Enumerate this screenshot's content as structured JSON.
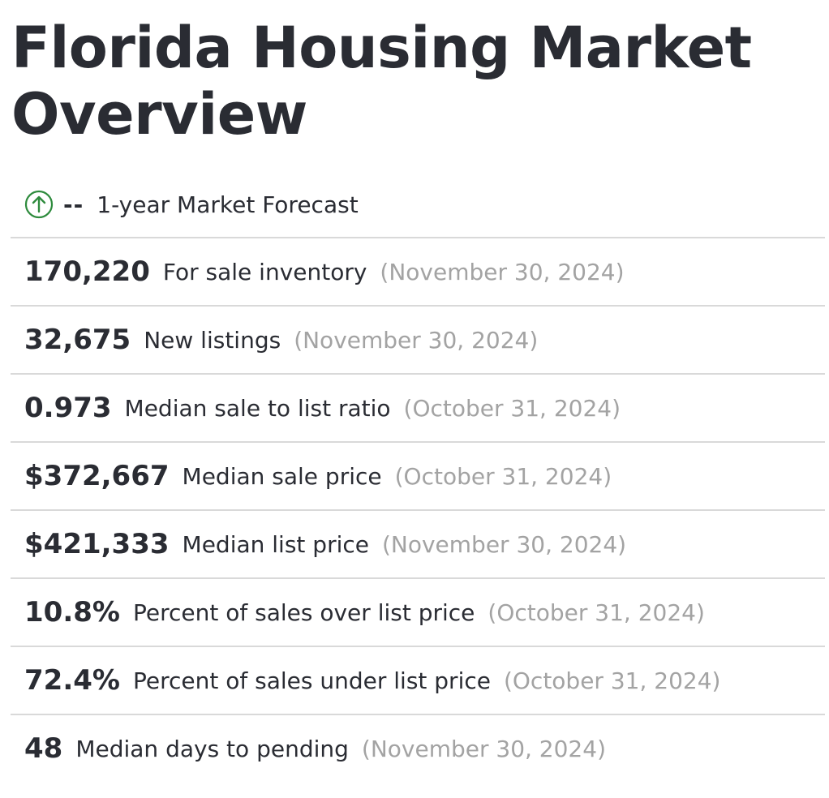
{
  "page": {
    "title": "Florida Housing Market Overview"
  },
  "forecast": {
    "icon": "arrow-up-circle-icon",
    "icon_color": "#2e8b3d",
    "value": "--",
    "label": "1-year Market Forecast"
  },
  "stats": [
    {
      "value": "170,220",
      "label": "For sale inventory",
      "date": "(November 30, 2024)"
    },
    {
      "value": "32,675",
      "label": "New listings",
      "date": "(November 30, 2024)"
    },
    {
      "value": "0.973",
      "label": "Median sale to list ratio",
      "date": "(October 31, 2024)"
    },
    {
      "value": "$372,667",
      "label": "Median sale price",
      "date": "(October 31, 2024)"
    },
    {
      "value": "$421,333",
      "label": "Median list price",
      "date": "(November 30, 2024)"
    },
    {
      "value": "10.8%",
      "label": "Percent of sales over list price",
      "date": "(October 31, 2024)"
    },
    {
      "value": "72.4%",
      "label": "Percent of sales under list price",
      "date": "(October 31, 2024)"
    },
    {
      "value": "48",
      "label": "Median days to pending",
      "date": "(November 30, 2024)"
    }
  ],
  "colors": {
    "text": "#2a2c33",
    "muted": "#a3a3a3",
    "divider": "#d9d9d9"
  }
}
